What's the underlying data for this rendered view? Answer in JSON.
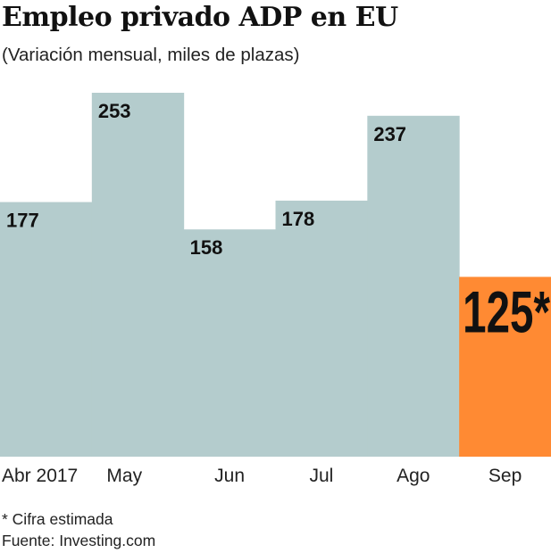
{
  "chart_data": {
    "type": "bar",
    "title": "Empleo privado ADP en EU",
    "subtitle": "(Variación mensual, miles de plazas)",
    "categories": [
      "Abr 2017",
      "May",
      "Jun",
      "Jul",
      "Ago",
      "Sep"
    ],
    "values": [
      177,
      253,
      158,
      178,
      237,
      125
    ],
    "data_labels": [
      "177",
      "253",
      "158",
      "178",
      "237",
      "125*"
    ],
    "highlight_index": 5,
    "colors": {
      "bar": "#b4cccd",
      "highlight": "#ff8a33"
    },
    "ylim": [
      0,
      253
    ],
    "grid": false,
    "xlabel": "",
    "ylabel": ""
  },
  "footnote": "* Cifra estimada",
  "source": "Fuente: Investing.com"
}
